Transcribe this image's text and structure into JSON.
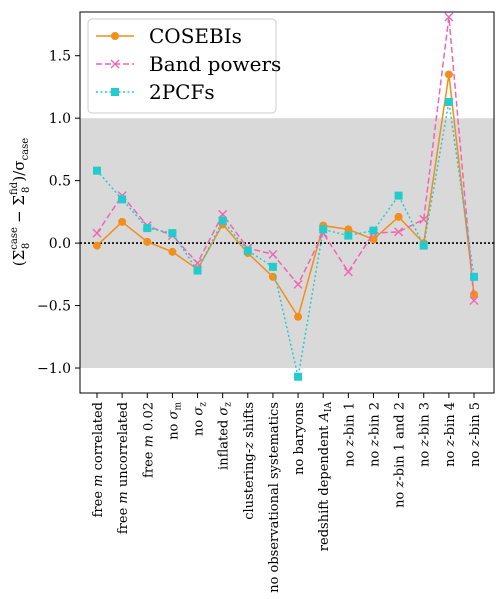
{
  "chart_data": {
    "type": "line",
    "title": "",
    "xlabel": "",
    "ylabel": "(Σ8case − Σ8fid)/σcase",
    "ylabel_parts": {
      "open": "(Σ",
      "sub1": "8",
      "sup1": "case",
      "minus": " − Σ",
      "sub2": "8",
      "sup2": "fid",
      "close": ")/σ",
      "sub3": "case"
    },
    "ylim": [
      -1.2,
      1.85
    ],
    "yticks": [
      -1.0,
      -0.5,
      0.0,
      0.5,
      1.0,
      1.5
    ],
    "ytick_labels": [
      "−1.0",
      "−0.5",
      "0.0",
      "0.5",
      "1.0",
      "1.5"
    ],
    "shaded_band": [
      -1.0,
      1.0
    ],
    "shade_color": "#d9d9d9",
    "zero_line": true,
    "grid": false,
    "legend_position": "top-left",
    "categories": [
      "free m correlated",
      "free m uncorrelated",
      "free m 0.02",
      "no σm",
      "no σz",
      "inflated σz",
      "clustering-z shifts",
      "no observational systematics",
      "no baryons",
      "redshift dependent AIA",
      "no z-bin 1",
      "no z-bin 2",
      "no z-bin 1 and 2",
      "no z-bin 3",
      "no z-bin 4",
      "no z-bin 5"
    ],
    "category_parts": [
      {
        "pre": "free ",
        "it": "m",
        "post": " correlated"
      },
      {
        "pre": "free ",
        "it": "m",
        "post": " uncorrelated"
      },
      {
        "pre": "free ",
        "it": "m",
        "post": " 0.02"
      },
      {
        "pre": "no ",
        "it": "σ",
        "sub": "m"
      },
      {
        "pre": "no ",
        "it": "σ",
        "sub": "z"
      },
      {
        "pre": "inflated ",
        "it": "σ",
        "sub": "z"
      },
      {
        "pre": "clustering-",
        "it": "z",
        "post": " shifts"
      },
      {
        "pre": "no observational systematics"
      },
      {
        "pre": "no baryons"
      },
      {
        "pre": "redshift dependent ",
        "it": "A",
        "sub": "IA"
      },
      {
        "pre": "no ",
        "it": "z",
        "post": "-bin 1"
      },
      {
        "pre": "no ",
        "it": "z",
        "post": "-bin 2"
      },
      {
        "pre": "no ",
        "it": "z",
        "post": "-bin 1 and 2"
      },
      {
        "pre": "no ",
        "it": "z",
        "post": "-bin 3"
      },
      {
        "pre": "no ",
        "it": "z",
        "post": "-bin 4"
      },
      {
        "pre": "no ",
        "it": "z",
        "post": "-bin 5"
      }
    ],
    "series": [
      {
        "name": "COSEBIs",
        "color": "#f28e1c",
        "linestyle": "solid",
        "marker": "circle",
        "values": [
          -0.02,
          0.17,
          0.01,
          -0.07,
          -0.21,
          0.15,
          -0.08,
          -0.27,
          -0.59,
          0.14,
          0.11,
          0.03,
          0.21,
          0.0,
          1.35,
          -0.41
        ]
      },
      {
        "name": "Band powers",
        "color": "#f065b4",
        "linestyle": "dashed",
        "marker": "x",
        "values": [
          0.08,
          0.38,
          0.14,
          0.06,
          -0.16,
          0.23,
          -0.04,
          -0.09,
          -0.33,
          0.08,
          -0.23,
          0.08,
          0.09,
          0.19,
          1.81,
          -0.46
        ]
      },
      {
        "name": "2PCFs",
        "color": "#22cccc",
        "linestyle": "dotted",
        "marker": "square",
        "values": [
          0.58,
          0.35,
          0.12,
          0.08,
          -0.22,
          0.18,
          -0.06,
          -0.19,
          -1.07,
          0.11,
          0.06,
          0.1,
          0.38,
          -0.02,
          1.13,
          -0.27
        ]
      }
    ]
  }
}
